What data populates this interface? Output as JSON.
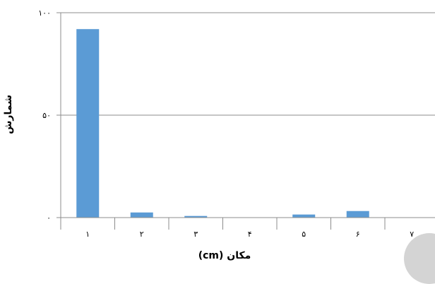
{
  "chart_data": {
    "type": "bar",
    "title": "",
    "xlabel": "مکان (cm)",
    "ylabel": "شمارش",
    "categories": [
      "۱",
      "۲",
      "۳",
      "۴",
      "۵",
      "۶",
      "۷"
    ],
    "values": [
      92,
      2.5,
      0.8,
      0,
      1.5,
      3.2,
      0
    ],
    "ylim": [
      0,
      100
    ],
    "yticks": [
      0,
      50,
      100
    ],
    "ytick_labels": [
      "۰",
      "۵۰",
      "۱۰۰"
    ],
    "grid": true,
    "legend": "none",
    "bar_color": "#5b9bd5",
    "grid_color": "#8c8c8c",
    "axis_color": "#8c8c8c"
  }
}
